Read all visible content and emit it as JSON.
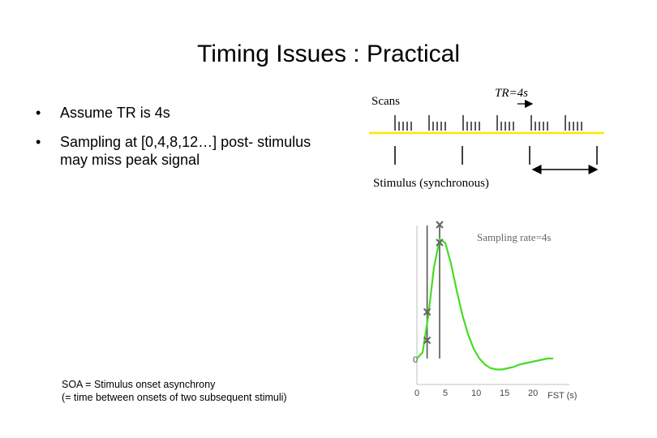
{
  "slide": {
    "title": "Timing Issues : Practical",
    "bullet_marker": "•",
    "bullets": [
      {
        "line1": "Assume TR is 4s",
        "line2": ""
      },
      {
        "line1": "Sampling at [0,4,8,12…] post- stimulus",
        "line2": "may miss peak signal"
      }
    ],
    "footnote": {
      "line1": "SOA = Stimulus onset asynchrony",
      "line2": "(= time between onsets of two subsequent stimuli)"
    }
  },
  "timing_diagram": {
    "scans_label": "Scans",
    "tr_label": "TR=4s",
    "stimulus_label": "Stimulus (synchronous)",
    "scan_line_color": "#ffe600",
    "scan_group_count": 6,
    "slices_per_scan": 5,
    "stimulus_count": 4
  },
  "hrf_plot": {
    "sampling_label": "Sampling rate=4s",
    "curve_color": "#44dd22",
    "y_zero_label": "0",
    "x_axis_label": "FST (s)",
    "x_ticks": [
      "0",
      "5",
      "10",
      "15",
      "20"
    ],
    "x_range": [
      0,
      24
    ],
    "sample_times": [
      1.8,
      4.0
    ]
  },
  "chart_data": {
    "type": "line",
    "title": "",
    "xlabel": "FST (s)",
    "ylabel": "",
    "x_ticks": [
      0,
      5,
      10,
      15,
      20
    ],
    "xlim": [
      0,
      24
    ],
    "series": [
      {
        "x": [
          0,
          1,
          2,
          3,
          4,
          5,
          6,
          7,
          8,
          9,
          10,
          11,
          12,
          13,
          14,
          15,
          16,
          17,
          18,
          19,
          20,
          21,
          22,
          23,
          24
        ],
        "y": [
          0,
          0.05,
          0.35,
          0.75,
          0.98,
          0.95,
          0.78,
          0.56,
          0.36,
          0.2,
          0.08,
          0.0,
          -0.05,
          -0.08,
          -0.09,
          -0.09,
          -0.08,
          -0.07,
          -0.05,
          -0.04,
          -0.03,
          -0.02,
          -0.01,
          0.0,
          0.0
        ]
      }
    ]
  }
}
